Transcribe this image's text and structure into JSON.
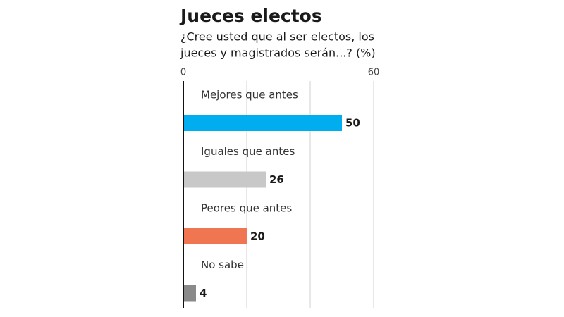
{
  "chart_data": {
    "type": "bar",
    "orientation": "horizontal",
    "title": "Jueces electos",
    "subtitle": [
      "¿Cree usted que al ser electos, los",
      "jueces y magistrados serán...? (%)"
    ],
    "categories": [
      "Mejores que antes",
      "Iguales que antes",
      "Peores que antes",
      "No sabe"
    ],
    "values": [
      50,
      26,
      20,
      4
    ],
    "colors": [
      "#00aeef",
      "#c8c8c8",
      "#f07651",
      "#8a8a8a"
    ],
    "xlim": [
      0,
      60
    ],
    "xticks": [
      0,
      60
    ],
    "xgrid": [
      20,
      40,
      60
    ],
    "grid": true
  }
}
